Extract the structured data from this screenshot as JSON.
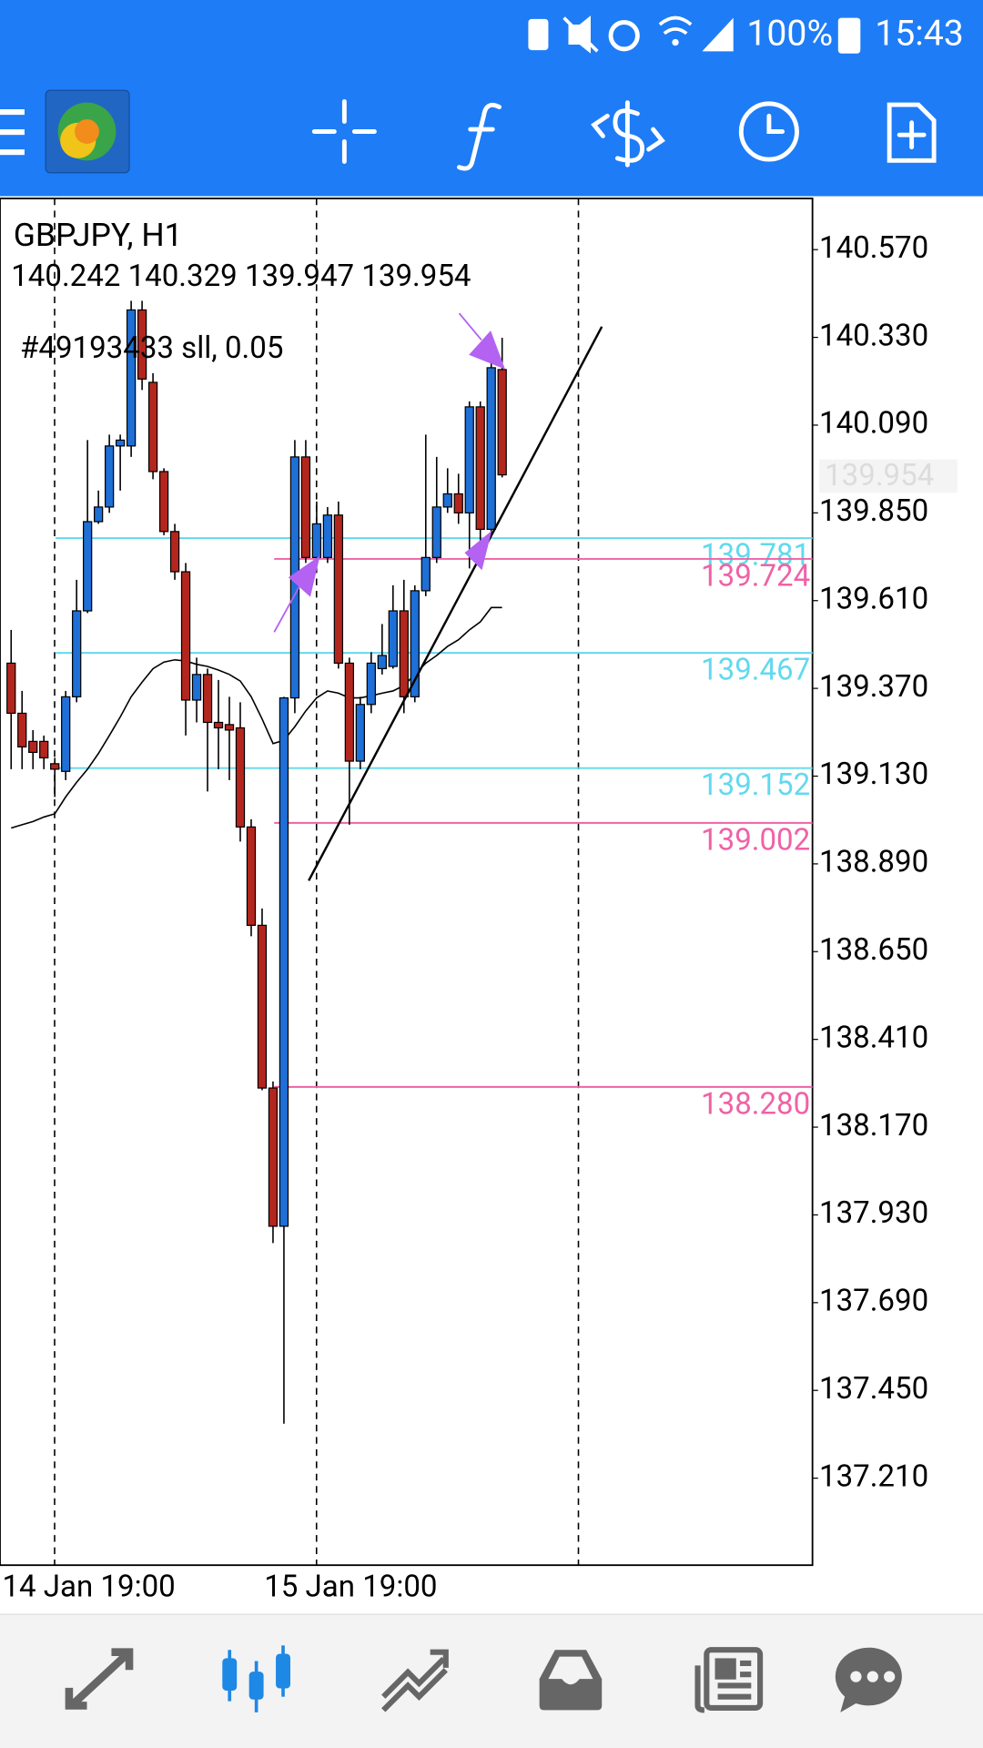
{
  "status_bar": {
    "battery": "100%",
    "time": "15:43"
  },
  "chart_data": {
    "type": "candlestick",
    "title": "GBPJPY, H1",
    "order_label": "#49193433 sll, 0.05",
    "x_labels": [
      "14 Jan 19:00",
      "15 Jan 19:00"
    ],
    "up_color": "#1e6fd6",
    "down_color": "#b3261e",
    "ma_color": "#000000",
    "open": [
      139.439,
      139.302,
      139.225,
      139.225,
      139.164,
      139.143,
      139.347,
      139.582,
      139.826,
      139.866,
      140.033,
      140.033,
      140.405,
      140.207,
      139.963,
      139.799,
      139.689,
      139.338,
      139.408,
      139.277,
      139.271,
      139.262,
      138.991,
      138.722,
      138.277,
      137.899,
      139.344,
      140.003,
      139.728,
      139.728,
      139.844,
      139.439,
      139.171,
      139.326,
      139.424,
      139.43,
      139.582,
      139.347,
      139.637,
      139.728,
      139.866,
      139.902,
      139.85,
      140.14,
      139.805,
      140.242
    ],
    "high": [
      139.53,
      139.363,
      139.256,
      139.241,
      139.18,
      139.363,
      139.667,
      140.049,
      139.911,
      140.064,
      140.064,
      140.43,
      140.43,
      140.232,
      139.972,
      139.82,
      139.713,
      139.454,
      139.424,
      139.393,
      139.347,
      139.332,
      139.012,
      138.768,
      138.295,
      139.347,
      140.049,
      140.049,
      139.881,
      139.866,
      139.881,
      139.454,
      139.347,
      139.469,
      139.546,
      139.652,
      139.667,
      139.652,
      140.064,
      140.003,
      139.972,
      139.957,
      140.155,
      140.155,
      140.262,
      140.329
    ],
    "low": [
      139.149,
      139.149,
      139.149,
      139.149,
      139.073,
      139.119,
      139.332,
      139.576,
      139.82,
      139.85,
      139.911,
      140.003,
      140.186,
      139.942,
      139.789,
      139.667,
      139.241,
      139.277,
      139.088,
      139.149,
      139.119,
      138.951,
      138.692,
      138.271,
      137.853,
      137.359,
      139.302,
      139.713,
      139.713,
      139.713,
      139.424,
      138.997,
      139.149,
      139.302,
      139.408,
      139.424,
      139.302,
      139.332,
      139.622,
      139.713,
      139.85,
      139.82,
      139.698,
      139.759,
      139.789,
      139.947
    ],
    "close": [
      139.302,
      139.21,
      139.195,
      139.18,
      139.149,
      139.347,
      139.582,
      139.826,
      139.866,
      140.033,
      140.049,
      140.405,
      140.216,
      139.963,
      139.799,
      139.689,
      139.338,
      139.408,
      139.277,
      139.262,
      139.256,
      138.991,
      138.722,
      138.277,
      137.899,
      139.344,
      140.003,
      139.728,
      139.82,
      139.844,
      139.439,
      139.171,
      139.326,
      139.439,
      139.46,
      139.582,
      139.347,
      139.637,
      139.728,
      139.866,
      139.902,
      139.85,
      140.14,
      139.805,
      140.247,
      139.954
    ],
    "ma": [
      138.988,
      138.997,
      139.006,
      139.018,
      139.027,
      139.073,
      139.113,
      139.149,
      139.192,
      139.241,
      139.292,
      139.347,
      139.387,
      139.424,
      139.442,
      139.448,
      139.445,
      139.436,
      139.43,
      139.42,
      139.408,
      139.39,
      139.347,
      139.286,
      139.219,
      139.228,
      139.265,
      139.308,
      139.344,
      139.363,
      139.357,
      139.344,
      139.344,
      139.35,
      139.357,
      139.363,
      139.378,
      139.408,
      139.439,
      139.46,
      139.485,
      139.503,
      139.53,
      139.552,
      139.591,
      139.591
    ],
    "alert_levels": {
      "color": "#62d9ef",
      "levels": [
        {
          "value": 139.781,
          "label": "139.781"
        },
        {
          "value": 139.467,
          "label": "139.467"
        },
        {
          "value": 139.152,
          "label": "139.152"
        }
      ]
    },
    "order_levels": {
      "color": "#ef62a5",
      "levels": [
        {
          "value": 139.724,
          "label": "139.724"
        },
        {
          "value": 139.002,
          "label": "139.002"
        },
        {
          "value": 138.28,
          "label": "138.280"
        }
      ]
    },
    "ylim": [
      136.972,
      140.71
    ],
    "yticks": [
      {
        "value": 140.57,
        "label": "140.570"
      },
      {
        "value": 140.33,
        "label": "140.330"
      },
      {
        "value": 140.09,
        "label": "140.090"
      },
      {
        "value": 139.85,
        "label": "139.850"
      },
      {
        "value": 139.61,
        "label": "139.610"
      },
      {
        "value": 139.37,
        "label": "139.370"
      },
      {
        "value": 139.13,
        "label": "139.130"
      },
      {
        "value": 138.89,
        "label": "138.890"
      },
      {
        "value": 138.65,
        "label": "138.650"
      },
      {
        "value": 138.41,
        "label": "138.410"
      },
      {
        "value": 138.17,
        "label": "138.170"
      },
      {
        "value": 137.93,
        "label": "137.930"
      },
      {
        "value": 137.69,
        "label": "137.690"
      },
      {
        "value": 137.45,
        "label": "137.450"
      },
      {
        "value": 137.21,
        "label": "137.210"
      }
    ]
  }
}
